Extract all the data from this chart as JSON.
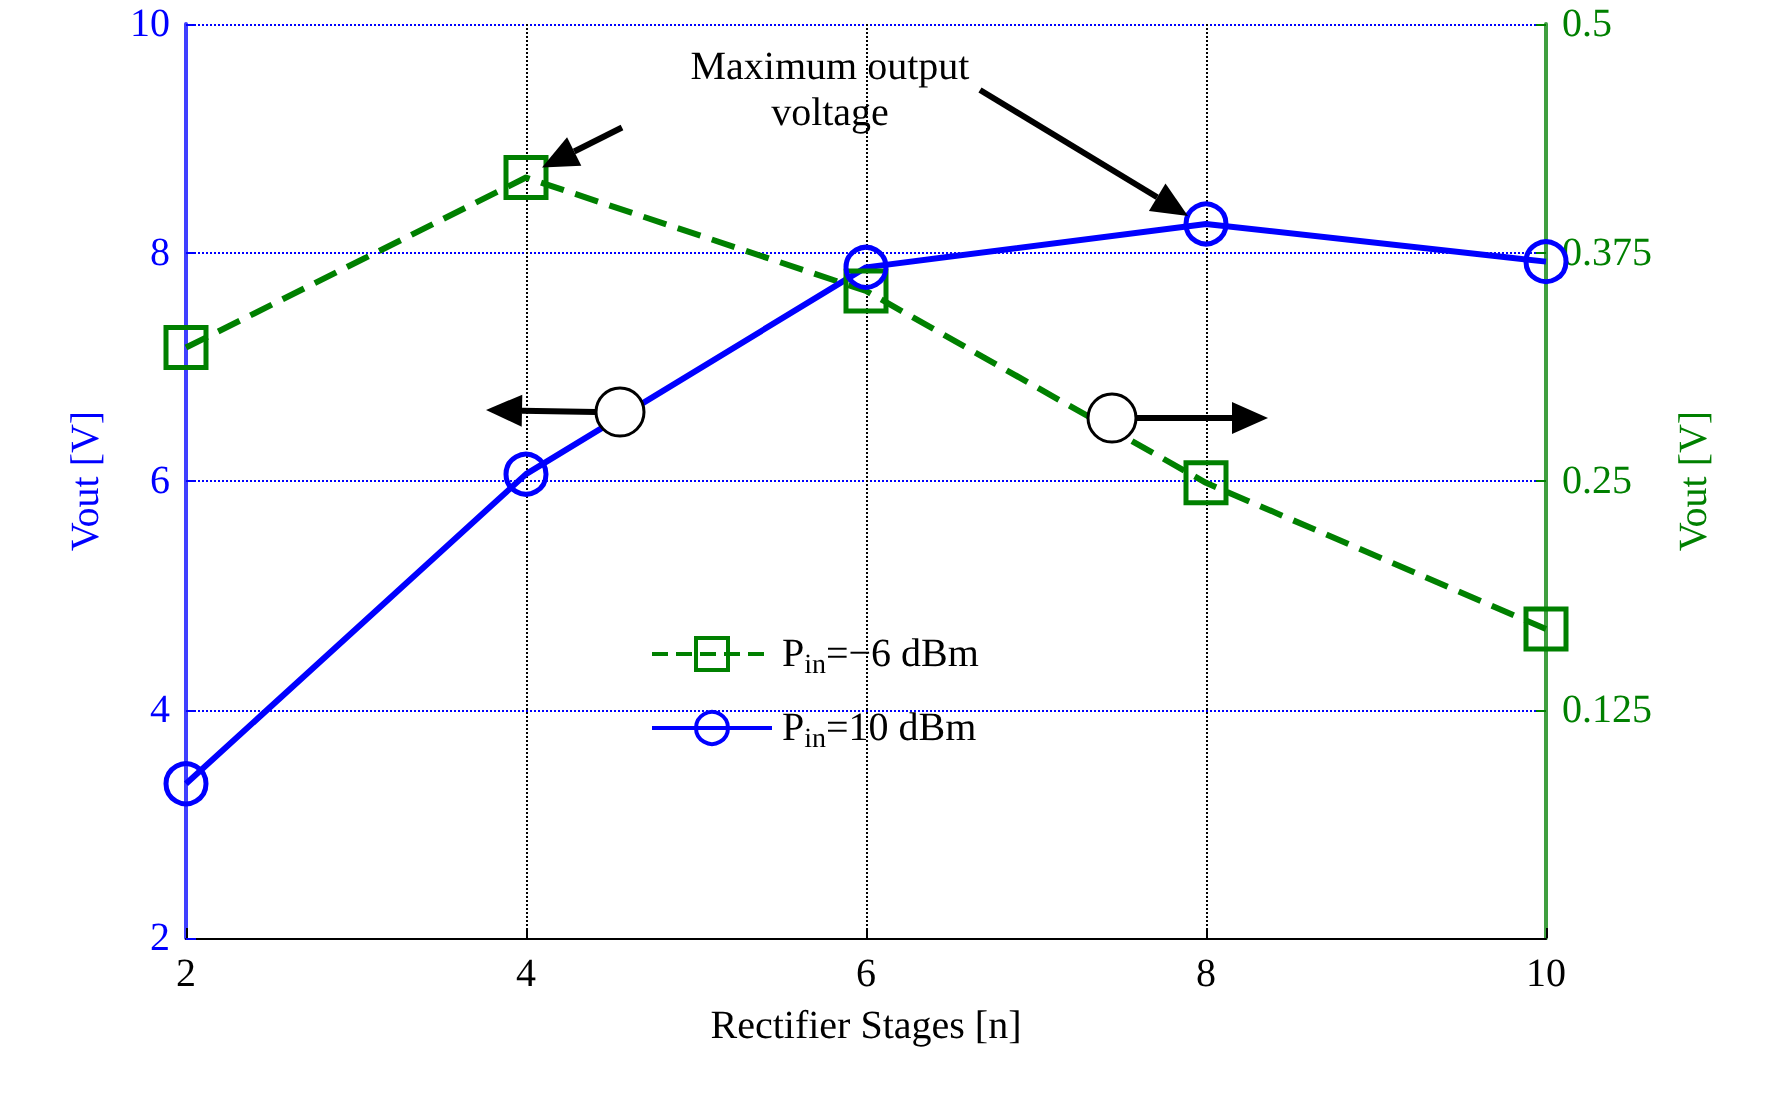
{
  "chart_data": {
    "type": "line",
    "xlabel": "Rectifier Stages [n]",
    "ylabel": "Vout [V]",
    "y2label": "Vout [V]",
    "x": [
      2,
      4,
      6,
      8,
      10
    ],
    "series": [
      {
        "name": "P$_{in}$=−6 dBm",
        "color": "#008000",
        "axis": "y2",
        "marker": "square",
        "line_style": "dashed",
        "values": [
          0.323,
          0.416,
          0.354,
          0.249,
          0.169
        ]
      },
      {
        "name": "P$_{in}$=10 dBm",
        "color": "#0000ff",
        "axis": "y",
        "marker": "circle",
        "line_style": "solid",
        "values": [
          3.35,
          6.06,
          7.87,
          8.25,
          7.92
        ]
      }
    ],
    "xlim": [
      2,
      10
    ],
    "xticks": [
      2,
      4,
      6,
      8,
      10
    ],
    "ylim": [
      2,
      10
    ],
    "yticks": [
      2,
      4,
      6,
      8,
      10
    ],
    "y2lim": [
      0,
      0.5
    ],
    "y2ticks": [
      0.125,
      0.25,
      0.375,
      0.5
    ],
    "annotations": [
      "Maximum output voltage"
    ],
    "grid": true,
    "legend": "bottom"
  }
}
